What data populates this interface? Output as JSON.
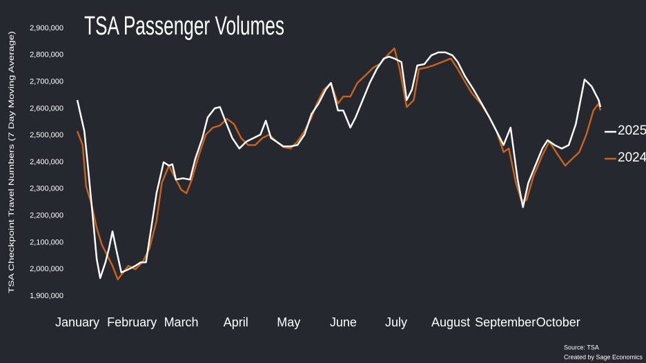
{
  "chart_data": {
    "type": "line",
    "title": "TSA Passenger Volumes",
    "ylabel": "TSA Checkpoint Travel Numbers (7 Day Moving Average)",
    "source": "Source: TSA",
    "credit": "Created by Sage Economics",
    "xlim": [
      1,
      298
    ],
    "xticks": [
      {
        "value": 1,
        "label": "January"
      },
      {
        "value": 32,
        "label": "February"
      },
      {
        "value": 60,
        "label": "March"
      },
      {
        "value": 91,
        "label": "April"
      },
      {
        "value": 121,
        "label": "May"
      },
      {
        "value": 152,
        "label": "June"
      },
      {
        "value": 182,
        "label": "July"
      },
      {
        "value": 213,
        "label": "August"
      },
      {
        "value": 244,
        "label": "September"
      },
      {
        "value": 274,
        "label": "October"
      }
    ],
    "ylim": [
      1900000,
      2900000
    ],
    "yticks": [
      {
        "value": 1900000,
        "label": "1,900,000"
      },
      {
        "value": 2000000,
        "label": "2,000,000"
      },
      {
        "value": 2100000,
        "label": "2,100,000"
      },
      {
        "value": 2200000,
        "label": "2,200,000"
      },
      {
        "value": 2300000,
        "label": "2,300,000"
      },
      {
        "value": 2400000,
        "label": "2,400,000"
      },
      {
        "value": 2500000,
        "label": "2,500,000"
      },
      {
        "value": 2600000,
        "label": "2,600,000"
      },
      {
        "value": 2700000,
        "label": "2,700,000"
      },
      {
        "value": 2800000,
        "label": "2,800,000"
      },
      {
        "value": 2900000,
        "label": "2,900,000"
      }
    ],
    "grid": false,
    "legend": "right",
    "series": [
      {
        "name": "2024",
        "color": "#c8621a",
        "x": [
          1,
          4,
          6,
          9,
          12,
          15,
          18,
          21,
          24,
          27,
          30,
          34,
          38,
          42,
          46,
          49,
          53,
          56,
          60,
          63,
          66,
          70,
          74,
          78,
          82,
          86,
          90,
          94,
          98,
          102,
          106,
          110,
          114,
          118,
          122,
          126,
          130,
          134,
          137,
          141,
          145,
          149,
          152,
          156,
          160,
          165,
          169,
          173,
          177,
          181,
          184,
          188,
          192,
          195,
          199,
          203,
          208,
          213,
          217,
          221,
          225,
          230,
          235,
          239,
          243,
          246,
          250,
          253,
          256,
          260,
          265,
          269,
          274,
          278,
          282,
          286,
          290,
          294,
          297,
          298
        ],
        "values": [
          2516000,
          2464000,
          2310000,
          2245000,
          2155000,
          2091000,
          2052000,
          2013000,
          1962000,
          1988000,
          2013000,
          2000000,
          2026000,
          2078000,
          2181000,
          2323000,
          2387000,
          2348000,
          2297000,
          2284000,
          2335000,
          2426000,
          2503000,
          2529000,
          2537000,
          2562000,
          2542000,
          2490000,
          2464000,
          2464000,
          2490000,
          2503000,
          2477000,
          2456000,
          2451000,
          2477000,
          2516000,
          2567000,
          2619000,
          2671000,
          2696000,
          2619000,
          2645000,
          2645000,
          2696000,
          2727000,
          2753000,
          2768000,
          2799000,
          2825000,
          2748000,
          2606000,
          2632000,
          2748000,
          2753000,
          2761000,
          2774000,
          2787000,
          2748000,
          2701000,
          2658000,
          2619000,
          2567000,
          2516000,
          2438000,
          2451000,
          2323000,
          2258000,
          2258000,
          2348000,
          2426000,
          2477000,
          2426000,
          2387000,
          2413000,
          2438000,
          2503000,
          2593000,
          2619000,
          2593000
        ]
      },
      {
        "name": "2025",
        "color": "#ffffff",
        "x": [
          1,
          5,
          7,
          10,
          12,
          14,
          17,
          19,
          21,
          23,
          26,
          30,
          34,
          37,
          40,
          43,
          46,
          50,
          53,
          55,
          57,
          61,
          65,
          68,
          72,
          75,
          79,
          82,
          85,
          89,
          93,
          97,
          101,
          105,
          108,
          111,
          114,
          118,
          122,
          126,
          130,
          134,
          138,
          142,
          145,
          149,
          152,
          156,
          159,
          163,
          167,
          171,
          175,
          178,
          181,
          185,
          188,
          191,
          194,
          198,
          202,
          206,
          210,
          214,
          217,
          221,
          226,
          231,
          235,
          239,
          243,
          247,
          251,
          254,
          257,
          261,
          265,
          268,
          272,
          276,
          280,
          284,
          289,
          293,
          297,
          298
        ],
        "values": [
          2632000,
          2516000,
          2387000,
          2181000,
          2039000,
          1967000,
          2026000,
          2078000,
          2142000,
          2078000,
          1988000,
          2000000,
          2013000,
          2026000,
          2026000,
          2155000,
          2284000,
          2400000,
          2387000,
          2392000,
          2335000,
          2340000,
          2335000,
          2413000,
          2490000,
          2567000,
          2601000,
          2606000,
          2555000,
          2490000,
          2451000,
          2477000,
          2490000,
          2503000,
          2555000,
          2490000,
          2477000,
          2459000,
          2459000,
          2464000,
          2503000,
          2580000,
          2619000,
          2671000,
          2696000,
          2593000,
          2593000,
          2529000,
          2567000,
          2632000,
          2696000,
          2748000,
          2787000,
          2794000,
          2787000,
          2774000,
          2632000,
          2671000,
          2761000,
          2766000,
          2799000,
          2810000,
          2810000,
          2799000,
          2774000,
          2722000,
          2671000,
          2614000,
          2567000,
          2516000,
          2464000,
          2529000,
          2335000,
          2232000,
          2322000,
          2387000,
          2451000,
          2482000,
          2464000,
          2451000,
          2464000,
          2542000,
          2709000,
          2683000,
          2632000,
          2606000
        ]
      }
    ]
  }
}
